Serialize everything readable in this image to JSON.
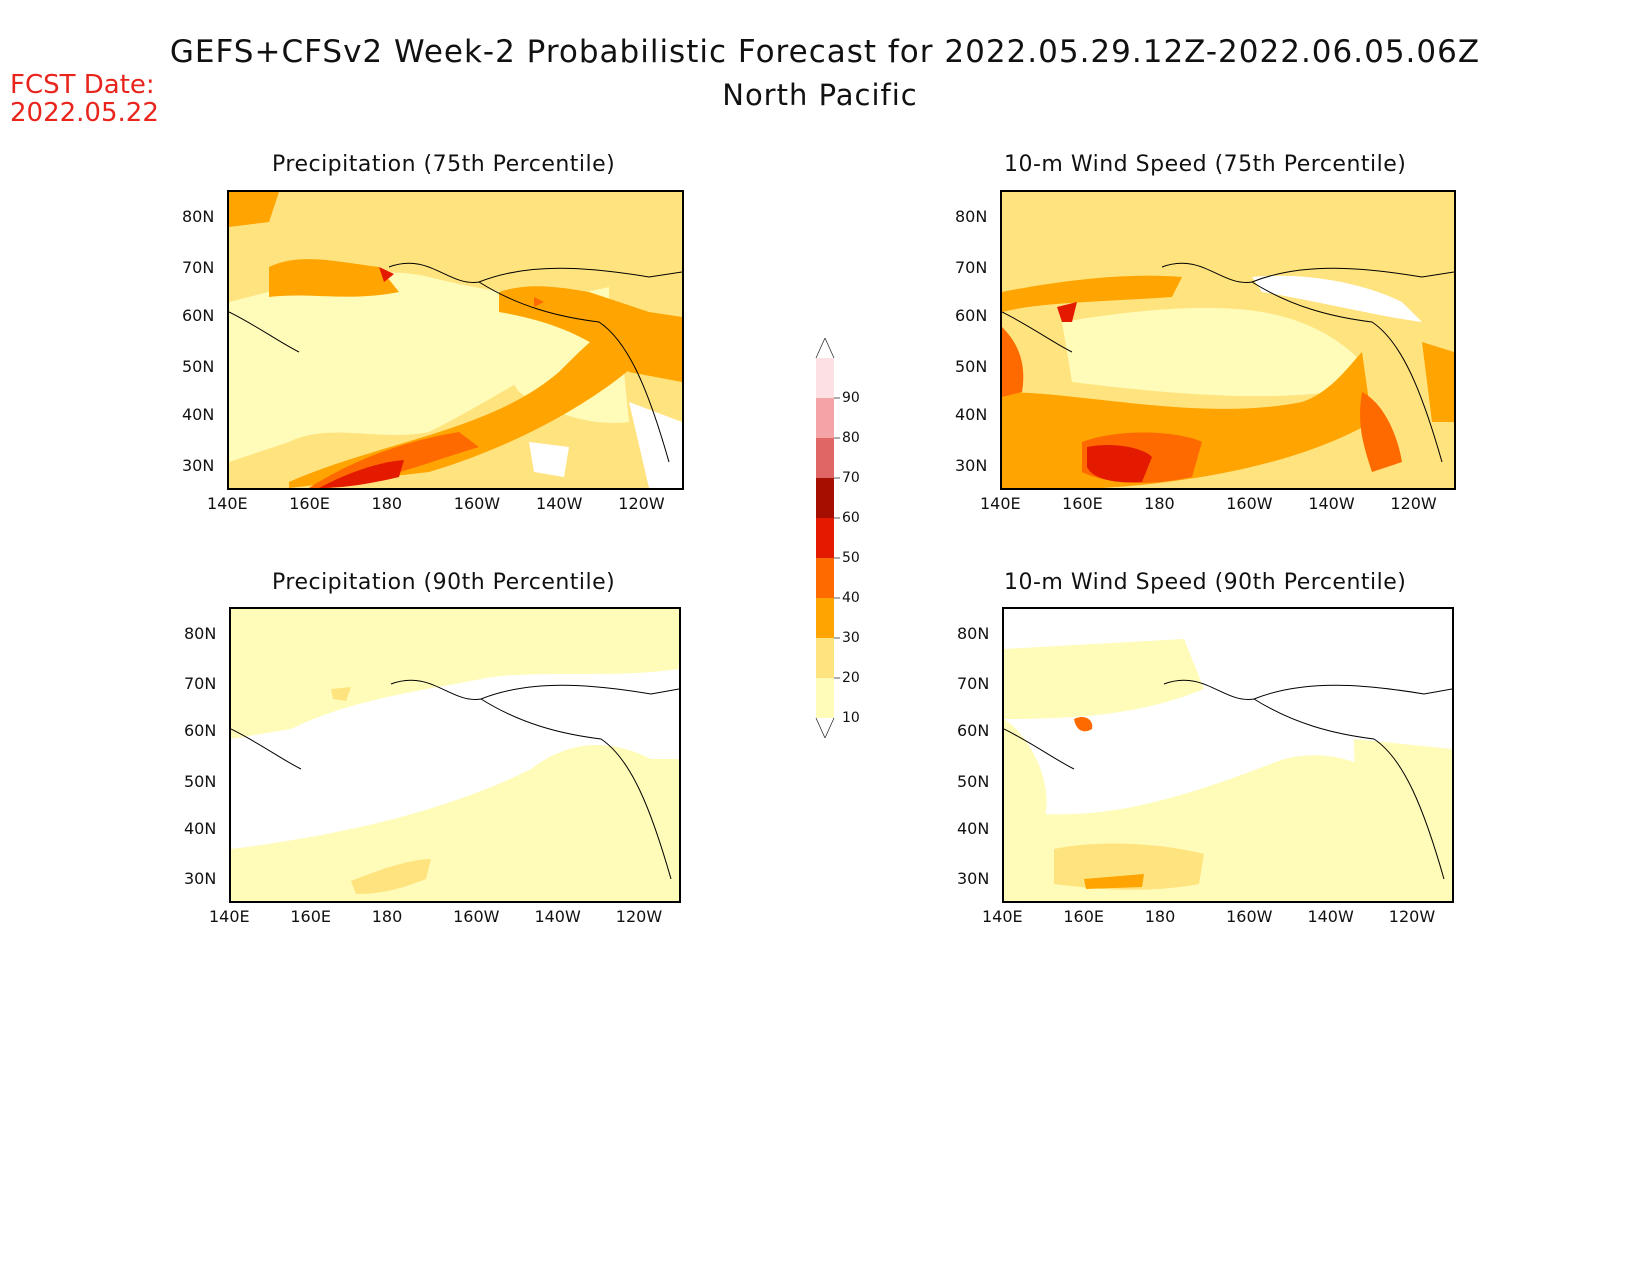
{
  "header": {
    "title": "GEFS+CFSv2 Week-2 Probabilistic Forecast for 2022.05.29.12Z-2022.06.05.06Z",
    "subtitle": "North Pacific",
    "fcst_label": "FCST Date:",
    "fcst_value": "2022.05.22"
  },
  "panels": [
    {
      "title": "Precipitation (75th Percentile)"
    },
    {
      "title": "10-m Wind Speed (75th Percentile)"
    },
    {
      "title": "Precipitation (90th Percentile)"
    },
    {
      "title": "10-m Wind Speed (90th Percentile)"
    }
  ],
  "axes": {
    "lon_labels": [
      "140E",
      "160E",
      "180",
      "160W",
      "140W",
      "120W"
    ],
    "lat_labels": [
      "80N",
      "70N",
      "60N",
      "50N",
      "40N",
      "30N"
    ]
  },
  "colorbar": {
    "levels": [
      "10",
      "20",
      "30",
      "40",
      "50",
      "60",
      "70",
      "80",
      "90"
    ],
    "colors": [
      "#fffbb8",
      "#ffe37e",
      "#ffa400",
      "#ff6a00",
      "#e31a00",
      "#a50f00",
      "#e06666",
      "#f4a3a6",
      "#fde0e3"
    ]
  },
  "colors": {
    "fcst_red": "#e8241c"
  }
}
